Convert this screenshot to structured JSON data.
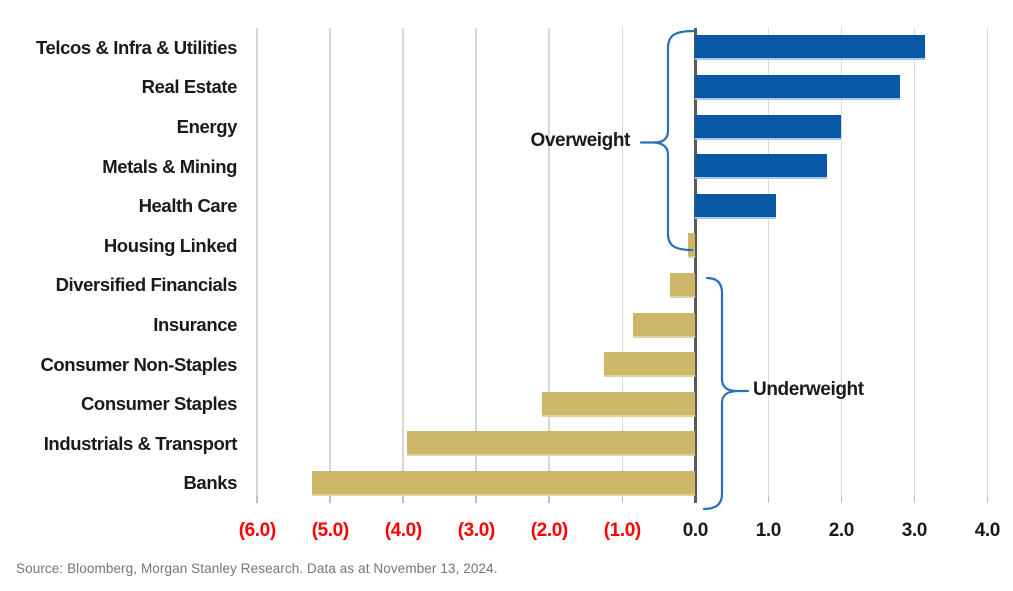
{
  "chart_data": {
    "type": "bar",
    "orientation": "horizontal",
    "title": "",
    "xlabel": "",
    "ylabel": "",
    "categories": [
      "Telcos & Infra & Utilities",
      "Real Estate",
      "Energy",
      "Metals & Mining",
      "Health Care",
      "Housing Linked",
      "Diversified Financials",
      "Insurance",
      "Consumer Non-Staples",
      "Consumer Staples",
      "Industrials & Transport",
      "Banks"
    ],
    "values": [
      3.15,
      2.8,
      2.0,
      1.8,
      1.1,
      -0.1,
      -0.35,
      -0.85,
      -1.25,
      -2.1,
      -3.95,
      -5.25
    ],
    "xlim": [
      -6.51,
      4.31
    ],
    "x_ticks": [
      {
        "value": -6,
        "label": "(6.0)"
      },
      {
        "value": -5,
        "label": "(5.0)"
      },
      {
        "value": -4,
        "label": "(4.0)"
      },
      {
        "value": -3,
        "label": "(3.0)"
      },
      {
        "value": -2,
        "label": "(2.0)"
      },
      {
        "value": -1,
        "label": "(1.0)"
      },
      {
        "value": 0,
        "label": "0.0"
      },
      {
        "value": 1,
        "label": "1.0"
      },
      {
        "value": 2,
        "label": "2.0"
      },
      {
        "value": 3,
        "label": "3.0"
      },
      {
        "value": 4,
        "label": "4.0"
      }
    ],
    "grid": "vertical",
    "legend_position": "none",
    "positive_color": "#0858a6",
    "negative_color": "#cbb767",
    "negative_tick_label_color": "#ff0000",
    "tick_label_color": "#1a1a1a"
  },
  "annotations": {
    "overweight_label": "Overweight",
    "underweight_label": "Underweight",
    "bracket_color": "#2c6fbb"
  },
  "footer": {
    "source": "Source: Bloomberg, Morgan Stanley Research. Data as at November 13, 2024."
  }
}
